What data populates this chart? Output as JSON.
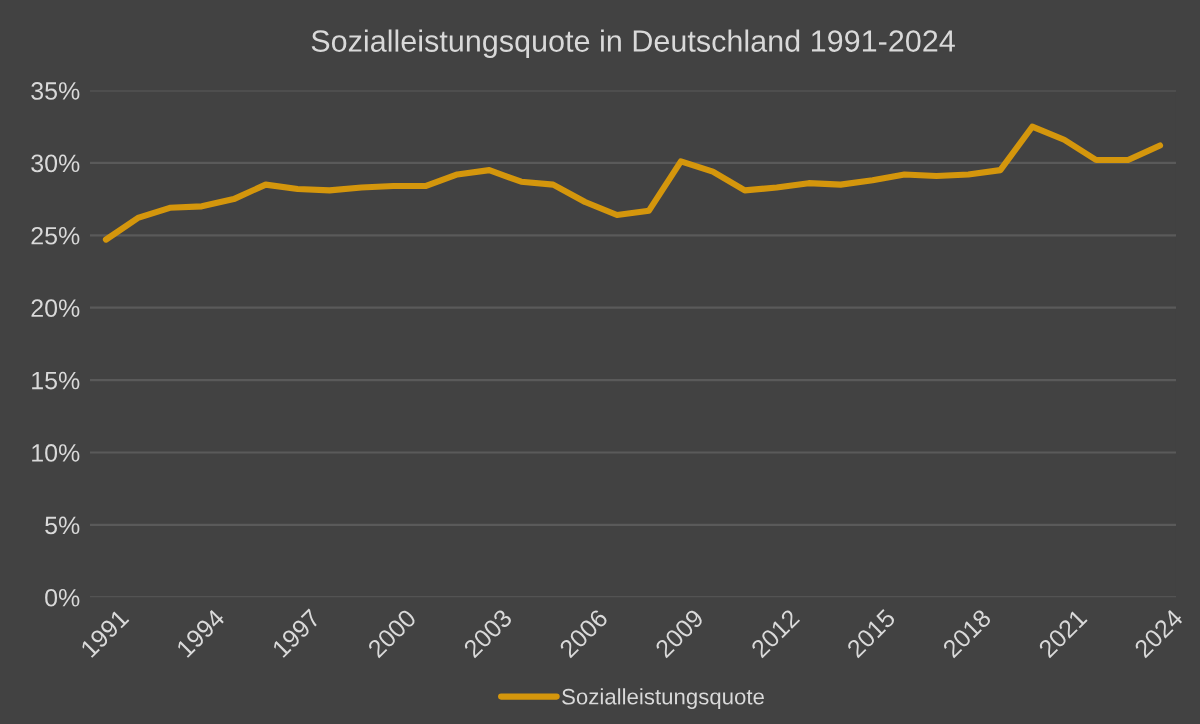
{
  "chart_data": {
    "type": "line",
    "title": "Sozialleistungsquote in Deutschland 1991-2024",
    "categories": [
      "1991",
      null,
      null,
      "1994",
      null,
      null,
      "1997",
      null,
      null,
      "2000",
      null,
      null,
      "2003",
      null,
      null,
      "2006",
      null,
      null,
      "2009",
      null,
      null,
      "2012",
      null,
      null,
      "2015",
      null,
      null,
      "2018",
      null,
      null,
      "2021",
      null,
      null,
      "2024"
    ],
    "series": [
      {
        "name": "Sozialleistungsquote",
        "color": "#d4960c",
        "values": [
          24.7,
          26.2,
          26.9,
          27.0,
          27.5,
          28.5,
          28.2,
          28.1,
          28.3,
          28.4,
          28.4,
          29.2,
          29.5,
          28.7,
          28.5,
          27.3,
          26.4,
          26.7,
          30.1,
          29.4,
          28.1,
          28.3,
          28.6,
          28.5,
          28.8,
          29.2,
          29.1,
          29.2,
          29.5,
          32.5,
          31.6,
          30.2,
          30.2,
          31.2
        ]
      }
    ],
    "ylim": [
      0,
      35
    ],
    "yticks": [
      {
        "value": 0,
        "label": "0%"
      },
      {
        "value": 5,
        "label": "5%"
      },
      {
        "value": 10,
        "label": "10%"
      },
      {
        "value": 15,
        "label": "15%"
      },
      {
        "value": 20,
        "label": "20%"
      },
      {
        "value": 25,
        "label": "25%"
      },
      {
        "value": 30,
        "label": "30%"
      },
      {
        "value": 35,
        "label": "35%"
      }
    ],
    "grid": "y",
    "legend": "bottom",
    "marker": "none",
    "line_style": "solid"
  }
}
